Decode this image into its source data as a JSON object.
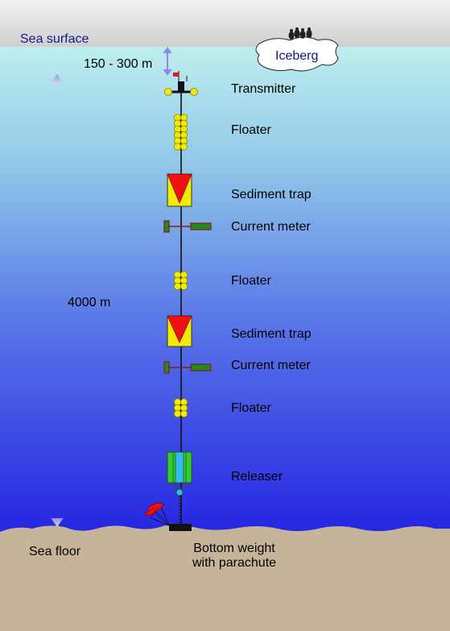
{
  "labels": {
    "sea_surface": "Sea surface",
    "iceberg": "Iceberg",
    "surface_depth": "150 - 300 m",
    "total_depth": "4000 m",
    "sea_floor": "Sea floor",
    "bottom_weight_line1": "Bottom weight",
    "bottom_weight_line2": "with parachute"
  },
  "components": [
    {
      "id": "transmitter",
      "label": "Transmitter"
    },
    {
      "id": "floater-1",
      "label": "Floater"
    },
    {
      "id": "sediment-trap-1",
      "label": "Sediment trap"
    },
    {
      "id": "current-meter-1",
      "label": "Current meter"
    },
    {
      "id": "floater-2",
      "label": "Floater"
    },
    {
      "id": "sediment-trap-2",
      "label": "Sediment trap"
    },
    {
      "id": "current-meter-2",
      "label": "Current meter"
    },
    {
      "id": "floater-3",
      "label": "Floater"
    },
    {
      "id": "releaser",
      "label": "Releaser"
    }
  ],
  "colors": {
    "sky": "#d8d8d8",
    "water_top": "#b8ecec",
    "water_bottom": "#2020e0",
    "seabed": "#c6b49a",
    "floater": "#f2ea00",
    "trap_box": "#f2ea00",
    "trap_cone": "#ee1111",
    "meter_body": "#1f8a1f",
    "meter_frame": "#8b1a1a",
    "releaser_green": "#33cc33",
    "releaser_blue": "#33bbee",
    "weight": "#111111",
    "arrow": "#9999ee",
    "sea_text": "#111a80"
  }
}
